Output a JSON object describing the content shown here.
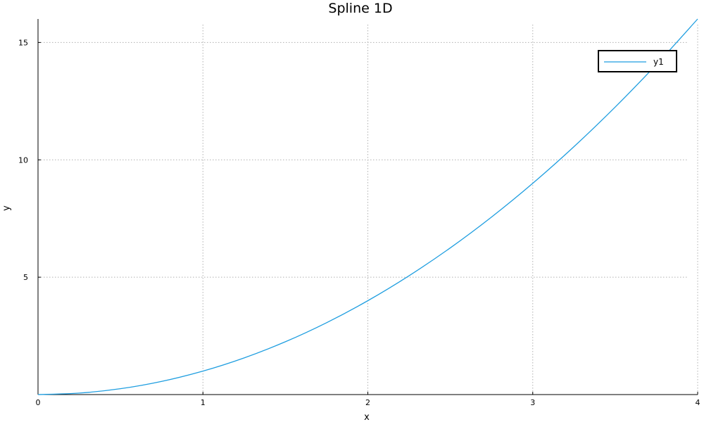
{
  "chart_data": {
    "type": "line",
    "title": "Spline 1D",
    "xlabel": "x",
    "ylabel": "y",
    "xlim": [
      0,
      4
    ],
    "ylim": [
      0,
      16
    ],
    "xticks": [
      0,
      1,
      2,
      3,
      4
    ],
    "xtick_labels": [
      "0",
      "1",
      "2",
      "3",
      "4"
    ],
    "yticks": [
      5,
      10,
      15
    ],
    "ytick_labels": [
      "5",
      "10",
      "15"
    ],
    "grid": true,
    "legend_position": "top-right",
    "series": [
      {
        "name": "y1",
        "color": "#1f9ee0",
        "x": [
          0,
          0.25,
          0.5,
          0.75,
          1,
          1.25,
          1.5,
          1.75,
          2,
          2.25,
          2.5,
          2.75,
          3,
          3.25,
          3.5,
          3.75,
          4
        ],
        "y": [
          0,
          0.0625,
          0.25,
          0.5625,
          1,
          1.5625,
          2.25,
          3.0625,
          4,
          5.0625,
          6.25,
          7.5625,
          9,
          10.5625,
          12.25,
          14.0625,
          16
        ]
      }
    ]
  }
}
